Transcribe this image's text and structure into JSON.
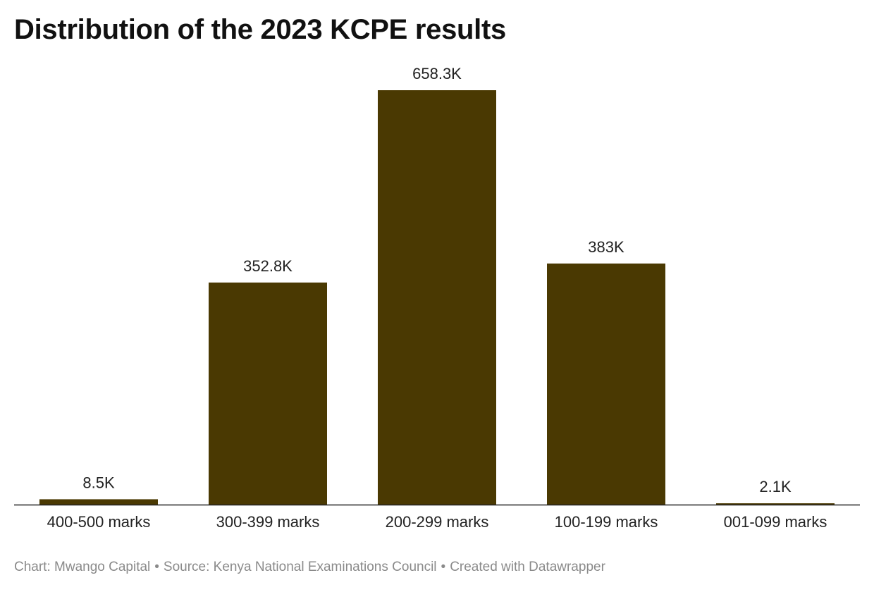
{
  "chart_data": {
    "type": "bar",
    "title": "Distribution of the 2023 KCPE results",
    "categories": [
      "400-500 marks",
      "300-399 marks",
      "200-299 marks",
      "100-199 marks",
      "001-099 marks"
    ],
    "values": [
      8.5,
      352.8,
      658.3,
      383,
      2.1
    ],
    "value_labels": [
      "8.5K",
      "352.8K",
      "658.3K",
      "383K",
      "2.1K"
    ],
    "xlabel": "",
    "ylabel": "",
    "ylim": [
      0,
      658.3
    ],
    "grid": false,
    "legend": "none",
    "bar_color": "#4a3902"
  },
  "footer": {
    "chart_credit": "Chart: Mwango Capital",
    "source": "Source: Kenya National Examinations Council",
    "created_with": "Created with Datawrapper",
    "separator": "•"
  },
  "colors": {
    "bar": "#4a3902",
    "axis": "#222222",
    "footer_text": "#8a8a8a"
  }
}
